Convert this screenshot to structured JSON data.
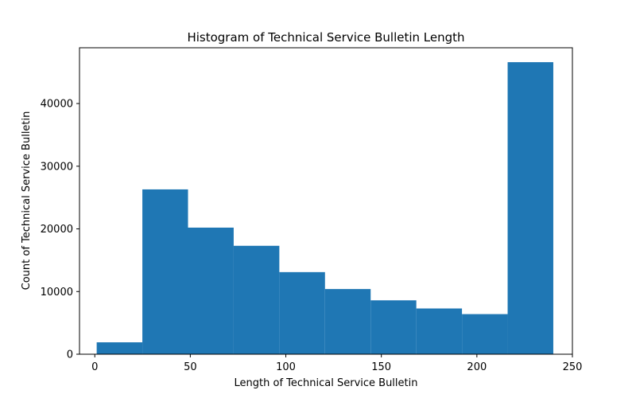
{
  "chart_data": {
    "type": "histogram",
    "title": "Histogram of Technical Service Bulletin Length",
    "xlabel": "Length of Technical Service Bulletin",
    "ylabel": "Count of Technical Service Bulletin",
    "xlim": [
      -8,
      250
    ],
    "ylim": [
      0,
      48900
    ],
    "xticks": [
      0,
      50,
      100,
      150,
      200,
      250
    ],
    "yticks": [
      0,
      10000,
      20000,
      30000,
      40000
    ],
    "bar_color": "#1f77b4",
    "grid": false,
    "bins": [
      {
        "x0": 1,
        "x1": 24.9,
        "count": 1900
      },
      {
        "x0": 24.9,
        "x1": 48.8,
        "count": 26300
      },
      {
        "x0": 48.8,
        "x1": 72.7,
        "count": 20200
      },
      {
        "x0": 72.7,
        "x1": 96.6,
        "count": 17300
      },
      {
        "x0": 96.6,
        "x1": 120.5,
        "count": 13100
      },
      {
        "x0": 120.5,
        "x1": 144.4,
        "count": 10400
      },
      {
        "x0": 144.4,
        "x1": 168.3,
        "count": 8600
      },
      {
        "x0": 168.3,
        "x1": 192.2,
        "count": 7300
      },
      {
        "x0": 192.2,
        "x1": 216.1,
        "count": 6400
      },
      {
        "x0": 216.1,
        "x1": 240,
        "count": 46600
      }
    ]
  }
}
